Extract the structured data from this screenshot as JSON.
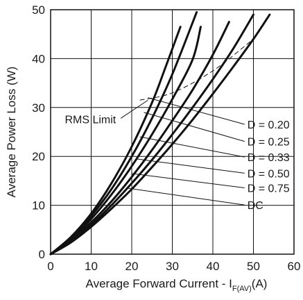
{
  "chart_data": {
    "type": "line",
    "xlabel": "Average Forward Current - I",
    "xlabel_subscript": "F(AV)",
    "xlabel_unit": "(A)",
    "ylabel": "Average Power Loss (W)",
    "xlim": [
      0,
      60
    ],
    "ylim": [
      0,
      50
    ],
    "xticks": [
      0,
      10,
      20,
      30,
      40,
      50,
      60
    ],
    "yticks": [
      0,
      10,
      20,
      30,
      40,
      50
    ],
    "grid": true,
    "series": [
      {
        "name": "D = 0.20",
        "x": [
          0,
          5,
          10,
          15,
          20,
          25,
          28,
          32
        ],
        "y": [
          0,
          3.5,
          8.3,
          14.5,
          22,
          31,
          37.5,
          46.5
        ]
      },
      {
        "name": "D = 0.25",
        "x": [
          0,
          5,
          10,
          15,
          20,
          25,
          30,
          36
        ],
        "y": [
          0,
          3.3,
          7.8,
          13.3,
          20,
          27.8,
          36.8,
          49.5
        ]
      },
      {
        "name": "D = 0.33",
        "x": [
          0,
          5,
          10,
          15,
          20,
          25,
          30,
          35,
          37
        ],
        "y": [
          0,
          3,
          7.2,
          12.2,
          18,
          24.5,
          31.7,
          39.8,
          46.5
        ]
      },
      {
        "name": "D = 0.50",
        "x": [
          0,
          5,
          10,
          15,
          20,
          25,
          30,
          35,
          40,
          44
        ],
        "y": [
          0,
          2.8,
          6.5,
          10.8,
          15.8,
          21.3,
          27.3,
          33.6,
          40.8,
          47.5
        ]
      },
      {
        "name": "D = 0.75",
        "x": [
          0,
          5,
          10,
          15,
          20,
          25,
          30,
          35,
          40,
          45,
          50
        ],
        "y": [
          0,
          2.6,
          6,
          10,
          14.5,
          19.3,
          24.5,
          30,
          35.8,
          42,
          49
        ]
      },
      {
        "name": "DC",
        "x": [
          0,
          5,
          10,
          15,
          20,
          25,
          30,
          35,
          40,
          45,
          50,
          54
        ],
        "y": [
          0,
          2.4,
          5.6,
          9.3,
          13.3,
          17.8,
          22.5,
          27.5,
          32.8,
          38.3,
          44,
          49
        ]
      }
    ],
    "rms_limit": {
      "label": "RMS Limit",
      "x": [
        22,
        30,
        40,
        50
      ],
      "y": [
        31.5,
        33,
        37.5,
        44
      ]
    },
    "annotations": [
      {
        "text": "D = 0.20",
        "target": [
          24,
          32
        ]
      },
      {
        "text": "D = 0.25",
        "target": [
          23,
          29
        ]
      },
      {
        "text": "D = 0.33",
        "target": [
          22,
          24
        ]
      },
      {
        "text": "D = 0.50",
        "target": [
          21,
          19.5
        ]
      },
      {
        "text": "D = 0.75",
        "target": [
          20,
          16.5
        ]
      },
      {
        "text": "DC",
        "target": [
          19,
          13.5
        ]
      }
    ]
  }
}
